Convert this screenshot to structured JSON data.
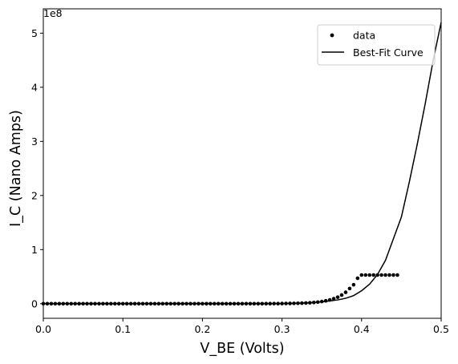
{
  "chart_data": {
    "type": "scatter",
    "xlabel": "V_BE (Volts)",
    "ylabel": "I_C (Nano Amps)",
    "y_scale_label": "1e8",
    "xlim": [
      0,
      0.5
    ],
    "ylim": [
      -0.27,
      5.45
    ],
    "y_unit_multiplier": 100000000,
    "x_ticks": [
      0.0,
      0.1,
      0.2,
      0.3,
      0.4,
      0.5
    ],
    "x_tick_labels": [
      "0.0",
      "0.1",
      "0.2",
      "0.3",
      "0.4",
      "0.5"
    ],
    "y_ticks": [
      0,
      1,
      2,
      3,
      4,
      5
    ],
    "y_tick_labels": [
      "0",
      "1",
      "2",
      "3",
      "4",
      "5"
    ],
    "grid": false,
    "legend": {
      "position": "top-right",
      "entries": [
        {
          "label": "data",
          "marker": "dot"
        },
        {
          "label": "Best-Fit Curve",
          "marker": "line"
        }
      ]
    },
    "series": [
      {
        "name": "data",
        "kind": "scatter",
        "color": "#000000",
        "x_start": 0.0,
        "x_step": 0.005,
        "values_1e8": [
          0,
          0,
          0,
          0,
          0,
          0,
          0,
          0,
          0,
          0,
          0,
          0,
          0,
          0,
          0,
          0,
          0,
          0,
          0,
          0,
          0,
          0,
          0,
          0,
          0,
          0,
          0,
          0,
          0,
          0,
          0,
          0,
          0,
          0,
          0,
          0,
          0,
          0,
          0,
          0,
          0,
          0,
          0,
          0,
          0,
          0,
          0,
          0,
          0,
          0,
          0,
          0,
          0,
          0,
          0,
          0,
          0.001,
          0.001,
          0.002,
          0.002,
          0.003,
          0.004,
          0.005,
          0.006,
          0.008,
          0.01,
          0.013,
          0.017,
          0.022,
          0.03,
          0.04,
          0.053,
          0.07,
          0.093,
          0.12,
          0.16,
          0.21,
          0.28,
          0.35,
          0.47,
          0.53,
          0.53,
          0.53,
          0.53,
          0.53,
          0.53,
          0.53,
          0.53,
          0.53,
          0.53
        ]
      },
      {
        "name": "Best-Fit Curve",
        "kind": "line",
        "color": "#000000",
        "x": [
          0.0,
          0.05,
          0.1,
          0.15,
          0.2,
          0.25,
          0.3,
          0.32,
          0.34,
          0.36,
          0.37,
          0.38,
          0.39,
          0.4,
          0.41,
          0.42,
          0.43,
          0.44,
          0.45,
          0.46,
          0.47,
          0.48,
          0.49,
          0.5
        ],
        "y_1e8": [
          0,
          0,
          0,
          0,
          0,
          0,
          0.003,
          0.009,
          0.02,
          0.05,
          0.07,
          0.1,
          0.15,
          0.24,
          0.36,
          0.54,
          0.8,
          1.2,
          1.6,
          2.25,
          2.95,
          3.7,
          4.5,
          5.2
        ]
      }
    ]
  }
}
